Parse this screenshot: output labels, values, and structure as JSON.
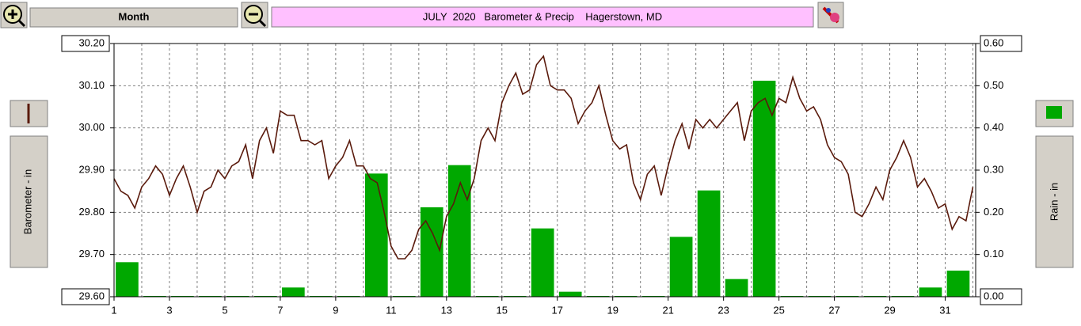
{
  "ui": {
    "range_button": "Month"
  },
  "chart_data": {
    "type": "combo",
    "title": "JULY  2020   Barometer & Precip    Hagerstown, MD",
    "ylabel": "Barometer - in",
    "y2label": "Rain - in",
    "xlim": [
      1,
      32.1
    ],
    "xticks": [
      1,
      3,
      5,
      7,
      9,
      11,
      13,
      15,
      17,
      19,
      21,
      23,
      25,
      27,
      29,
      31
    ],
    "xminorticks": [
      1,
      2,
      3,
      4,
      5,
      6,
      7,
      8,
      9,
      10,
      11,
      12,
      13,
      14,
      15,
      16,
      17,
      18,
      19,
      20,
      21,
      22,
      23,
      24,
      25,
      26,
      27,
      28,
      29,
      30,
      31,
      32
    ],
    "ylim": [
      29.6,
      30.2
    ],
    "yticks": [
      {
        "value": 29.6,
        "label": "29.60"
      },
      {
        "value": 29.7,
        "label": "29.70"
      },
      {
        "value": 29.8,
        "label": "29.80"
      },
      {
        "value": 29.9,
        "label": "29.90"
      },
      {
        "value": 30.0,
        "label": "30.00"
      },
      {
        "value": 30.1,
        "label": "30.10"
      },
      {
        "value": 30.2,
        "label": "30.20"
      }
    ],
    "y2lim": [
      0,
      0.6
    ],
    "y2ticks": [
      {
        "value": 0,
        "label": "0.00"
      },
      {
        "value": 0.1,
        "label": "0.10"
      },
      {
        "value": 0.2,
        "label": "0.20"
      },
      {
        "value": 0.3,
        "label": "0.30"
      },
      {
        "value": 0.4,
        "label": "0.40"
      },
      {
        "value": 0.5,
        "label": "0.50"
      },
      {
        "value": 0.6,
        "label": "0.60"
      }
    ],
    "grid": true,
    "series": [
      {
        "type": "bar",
        "axis": "y2",
        "color": "#00a800",
        "x": [
          1,
          2,
          3,
          4,
          5,
          6,
          7,
          8,
          9,
          10,
          11,
          12,
          13,
          14,
          15,
          16,
          17,
          18,
          19,
          20,
          21,
          22,
          23,
          24,
          25,
          26,
          27,
          28,
          29,
          30,
          31
        ],
        "values": [
          0.08,
          0,
          0,
          0,
          0,
          0,
          0.02,
          0,
          0,
          0.29,
          0,
          0.21,
          0.31,
          0,
          0,
          0.16,
          0.01,
          0,
          0,
          0,
          0.14,
          0.25,
          0.04,
          0.51,
          0,
          0,
          0,
          0,
          0,
          0.02,
          0.06
        ]
      },
      {
        "type": "line",
        "color": "#5a1a0c",
        "x": [
          1,
          1.25,
          1.5,
          1.75,
          2,
          2.25,
          2.5,
          2.75,
          3,
          3.25,
          3.5,
          3.75,
          4,
          4.25,
          4.5,
          4.75,
          5,
          5.25,
          5.5,
          5.75,
          6,
          6.25,
          6.5,
          6.75,
          7,
          7.25,
          7.5,
          7.75,
          8,
          8.25,
          8.5,
          8.75,
          9,
          9.25,
          9.5,
          9.75,
          10,
          10.25,
          10.5,
          10.75,
          11,
          11.25,
          11.5,
          11.75,
          12,
          12.25,
          12.5,
          12.75,
          13,
          13.25,
          13.5,
          13.75,
          14,
          14.25,
          14.5,
          14.75,
          15,
          15.25,
          15.5,
          15.75,
          16,
          16.25,
          16.5,
          16.75,
          17,
          17.25,
          17.5,
          17.75,
          18,
          18.25,
          18.5,
          18.75,
          19,
          19.25,
          19.5,
          19.75,
          20,
          20.25,
          20.5,
          20.75,
          21,
          21.25,
          21.5,
          21.75,
          22,
          22.25,
          22.5,
          22.75,
          23,
          23.25,
          23.5,
          23.75,
          24,
          24.25,
          24.5,
          24.75,
          25,
          25.25,
          25.5,
          25.75,
          26,
          26.25,
          26.5,
          26.75,
          27,
          27.25,
          27.5,
          27.75,
          28,
          28.25,
          28.5,
          28.75,
          29,
          29.25,
          29.5,
          29.75,
          30,
          30.25,
          30.5,
          30.75,
          31,
          31.25,
          31.5,
          31.75,
          32
        ],
        "values": [
          29.88,
          29.85,
          29.84,
          29.81,
          29.86,
          29.88,
          29.91,
          29.89,
          29.84,
          29.88,
          29.91,
          29.86,
          29.8,
          29.85,
          29.86,
          29.9,
          29.88,
          29.91,
          29.92,
          29.96,
          29.88,
          29.97,
          30.0,
          29.94,
          30.04,
          30.03,
          30.03,
          29.97,
          29.97,
          29.96,
          29.97,
          29.88,
          29.91,
          29.93,
          29.97,
          29.91,
          29.91,
          29.88,
          29.87,
          29.8,
          29.72,
          29.69,
          29.69,
          29.71,
          29.76,
          29.78,
          29.75,
          29.71,
          29.79,
          29.82,
          29.87,
          29.83,
          29.88,
          29.97,
          30.0,
          29.97,
          30.06,
          30.1,
          30.13,
          30.08,
          30.09,
          30.15,
          30.17,
          30.1,
          30.09,
          30.09,
          30.07,
          30.01,
          30.04,
          30.06,
          30.1,
          30.03,
          29.97,
          29.95,
          29.96,
          29.87,
          29.83,
          29.89,
          29.91,
          29.84,
          29.91,
          29.97,
          30.01,
          29.95,
          30.02,
          30.0,
          30.02,
          30.0,
          30.02,
          30.04,
          30.06,
          29.97,
          30.04,
          30.06,
          30.07,
          30.03,
          30.07,
          30.06,
          30.12,
          30.07,
          30.04,
          30.05,
          30.02,
          29.96,
          29.93,
          29.92,
          29.89,
          29.8,
          29.79,
          29.82,
          29.86,
          29.83,
          29.9,
          29.93,
          29.97,
          29.93,
          29.86,
          29.88,
          29.85,
          29.81,
          29.82,
          29.76,
          29.79,
          29.78,
          29.86
        ]
      }
    ]
  }
}
